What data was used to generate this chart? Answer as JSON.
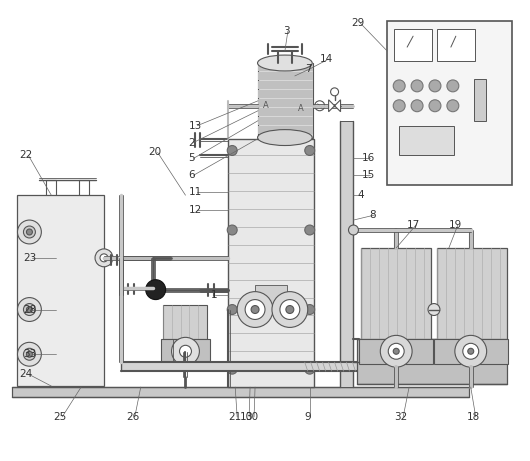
{
  "bg_color": "#ffffff",
  "line_color": "#555555",
  "lw": 0.8,
  "fig_width": 5.3,
  "fig_height": 4.61
}
